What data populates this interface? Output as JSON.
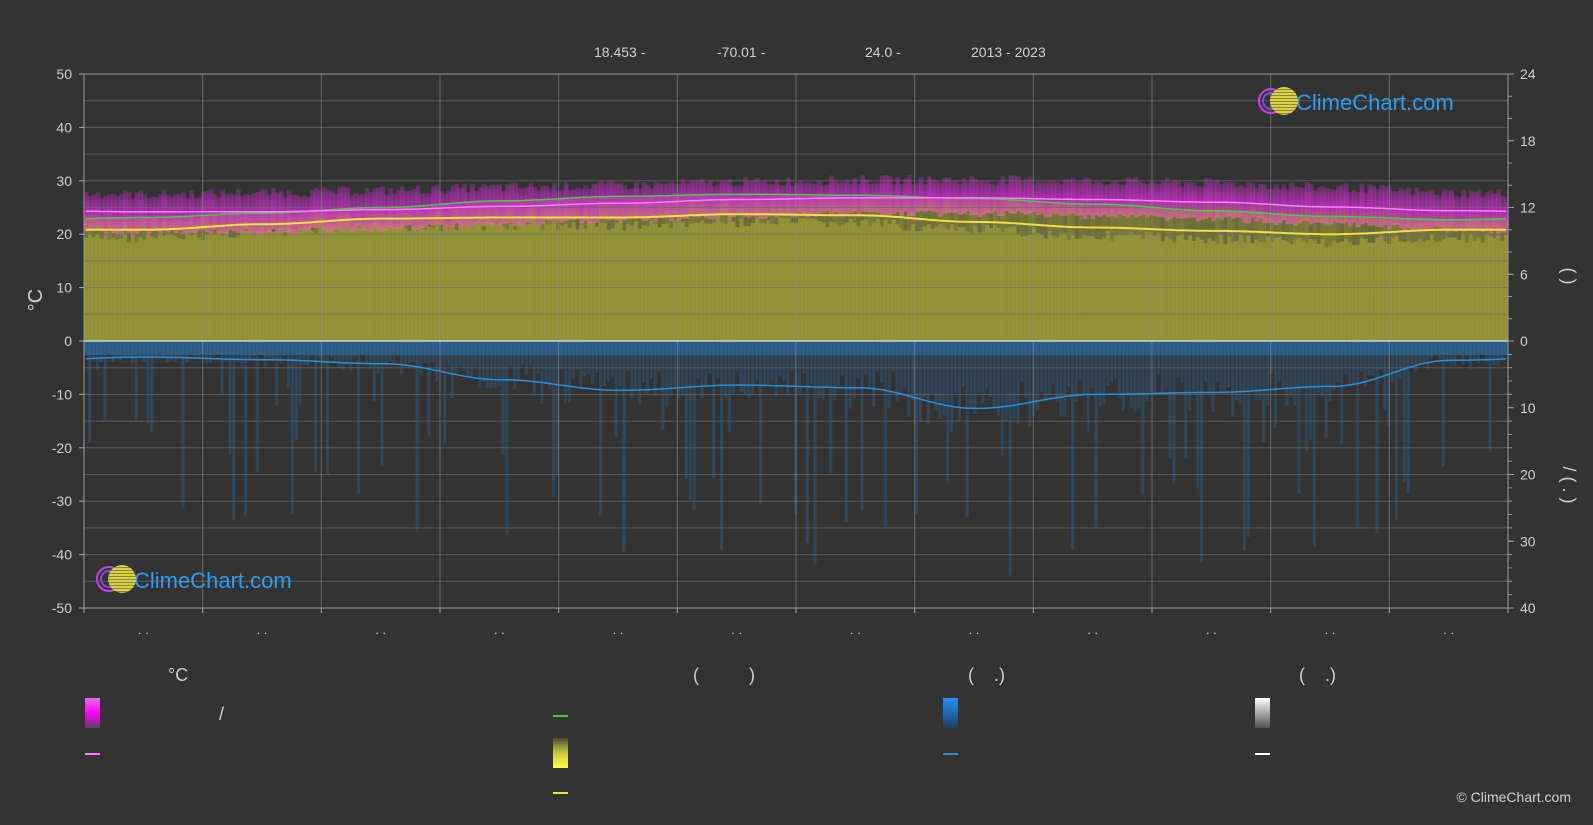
{
  "header": {
    "latitude": "18.453 -",
    "longitude": "-70.01 -",
    "elevation": "24.0 -",
    "years": "2013 - 2023"
  },
  "logo": {
    "text": "ClimeChart.com",
    "icon": "climechart-logo-icon"
  },
  "copyright": "© ClimeChart.com",
  "axes": {
    "left_label": "°C",
    "right_label_top": "(     )",
    "right_label_bottom": "/      (  .  )"
  },
  "legend": {
    "col1_head": "°C",
    "col1_item1": "/",
    "col2_head": "(          )",
    "col3_head": "(    .)",
    "col4_head": "(    .)"
  },
  "colors": {
    "background": "#333333",
    "temp_band": "#c82dc8",
    "mean_temp": "#ff7bff",
    "daylight": "#44cc44",
    "sunshine_fill": "#b2b23a",
    "sunshine_line": "#f0e040",
    "rain": "#2a8fd8",
    "snow": "#ffffff"
  },
  "chart_data": {
    "type": "area",
    "title": "",
    "x_ticks": [
      ". .",
      ". .",
      ". .",
      ". .",
      ". .",
      ". .",
      ". .",
      ". .",
      ". .",
      ". .",
      ". .",
      ". ."
    ],
    "ylim_left": [
      -50,
      50
    ],
    "yticks_left": [
      "50",
      "40",
      "30",
      "20",
      "10",
      "0",
      "-10",
      "-20",
      "-30",
      "-40",
      "-50"
    ],
    "yticks_right_top": [
      "24",
      "18",
      "12",
      "6",
      "0"
    ],
    "yticks_right_bottom": [
      "10",
      "20",
      "30",
      "40"
    ],
    "grid": true,
    "months_x": [
      0.5,
      1.5,
      2.5,
      3.5,
      4.5,
      5.5,
      6.5,
      7.5,
      8.5,
      9.5,
      10.5,
      11.5
    ],
    "series": [
      {
        "key": "temp_max",
        "values": [
          27.5,
          27.8,
          28.2,
          28.8,
          29.2,
          29.8,
          30.2,
          30.2,
          30.0,
          29.6,
          28.8,
          27.8
        ]
      },
      {
        "key": "temp_min",
        "values": [
          21.0,
          21.0,
          21.6,
          22.4,
          23.2,
          24.0,
          24.4,
          24.4,
          24.0,
          23.4,
          22.4,
          21.4
        ]
      },
      {
        "key": "mean_temp",
        "values": [
          24.2,
          24.2,
          24.6,
          25.2,
          25.8,
          26.5,
          26.8,
          26.8,
          26.5,
          26.0,
          25.1,
          24.4
        ]
      },
      {
        "key": "daylight_hours",
        "values": [
          11.1,
          11.5,
          12.0,
          12.6,
          13.0,
          13.2,
          13.1,
          12.8,
          12.3,
          11.7,
          11.2,
          10.9
        ]
      },
      {
        "key": "sunshine_hours",
        "values": [
          10.0,
          10.5,
          11.0,
          11.1,
          11.1,
          11.4,
          11.3,
          10.7,
          10.2,
          9.9,
          9.6,
          10.0
        ]
      },
      {
        "key": "rain_daily_mm",
        "values": [
          2.4,
          2.8,
          3.4,
          5.8,
          7.4,
          6.6,
          7.0,
          10.1,
          8.0,
          7.7,
          6.8,
          2.9
        ]
      }
    ]
  }
}
